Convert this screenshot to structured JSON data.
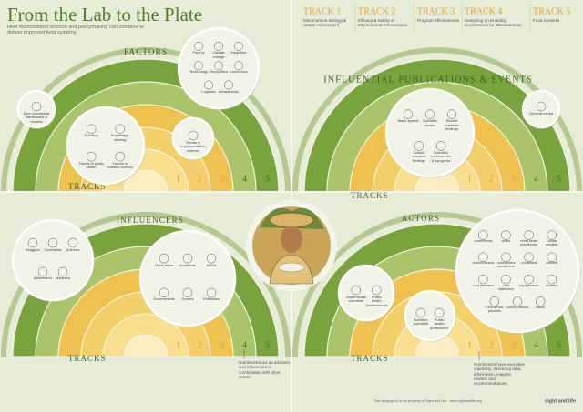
{
  "header": {
    "title": "From the Lab to the Plate",
    "subtitle": "How micronutrient science and policymaking can combine to deliver improved food systems"
  },
  "tracks": [
    {
      "label": "TRACK 1",
      "description": "Micronutrient Biology & Status Assessment"
    },
    {
      "label": "TRACK 2",
      "description": "Efficacy & Safety of Micronutrient Interventions"
    },
    {
      "label": "TRACK 3",
      "description": "Program Effectiveness"
    },
    {
      "label": "TRACK 4",
      "description": "Designing an Enabling Environment for Micronutrients"
    },
    {
      "label": "TRACK 5",
      "description": "Food Systems"
    }
  ],
  "tracks_label": "TRACKS",
  "ring_labels": [
    "1",
    "2",
    "3",
    "4",
    "5"
  ],
  "quadrants": [
    {
      "title": "FACTORS",
      "bubbles": [
        {
          "items": [
            "Poverty",
            "Climate change",
            "Inequities",
            "Technology",
            "Geopolitics",
            "Economics",
            "Logistics",
            "Infrastructure"
          ]
        },
        {
          "items": [
            "New conceptual frameworks & models"
          ]
        },
        {
          "items": [
            "Funding",
            "Knowledge sharing",
            "Trends in public health",
            "Trends in nutrition science"
          ]
        },
        {
          "items": [
            "Trends in implementation science"
          ]
        }
      ]
    },
    {
      "title": "INFLUENTIAL PUBLICATIONS & EVENTS",
      "bubbles": [
        {
          "items": [
            "Mass appeal",
            "Scientific books",
            "Recent research findings",
            "Classic research findings",
            "Scientific conferences & symposia"
          ]
        },
        {
          "items": [
            "General media"
          ]
        }
      ]
    },
    {
      "title": "INFLUENCERS",
      "note": "Nutritionists act as advisers and influencers in combination with other actors.",
      "bubbles": [
        {
          "items": [
            "Bloggers",
            "Journalists",
            "Activists",
            "Advertisers",
            "Modelers"
          ]
        },
        {
          "items": [
            "Think tanks",
            "Academia",
            "NGOs",
            "Governments",
            "Donors",
            "Politicians"
          ]
        }
      ]
    },
    {
      "title": "ACTORS",
      "note": "Nutritionists have executive capability, delivering data, information, insights, models and recommendations.",
      "bubbles": [
        {
          "items": [
            "Implementation scientists",
            "Public health professionals"
          ]
        },
        {
          "items": [
            "Nutrition scientists",
            "Public health professionals"
          ]
        },
        {
          "items": [
            "Governments",
            "Millers",
            "Public health practitioners",
            "Climate scientists",
            "Social scientists",
            "Development practitioners",
            "Consultants",
            "Farmers",
            "Food producers",
            "Food distributors",
            "Big agriculture",
            "Retailers",
            "Food service providers",
            "Social protection",
            "Banks"
          ]
        }
      ]
    }
  ],
  "footer": {
    "credit": "This infographic is the property of Sight and Life · www.sightandlife.org",
    "logo": "sight and life"
  }
}
